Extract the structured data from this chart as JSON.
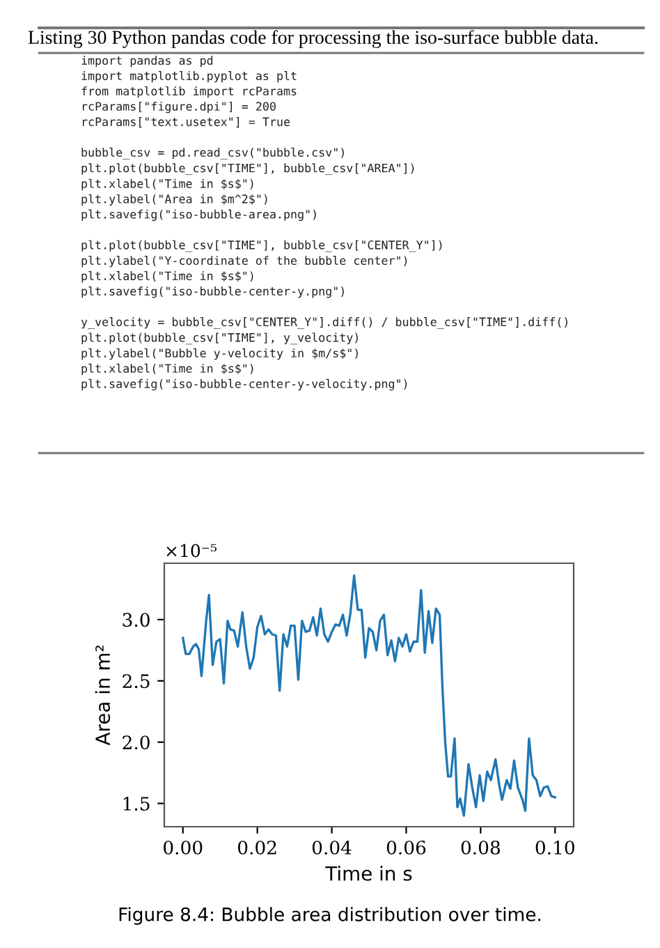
{
  "chart_data": {
    "type": "line",
    "xlabel": "Time in s",
    "ylabel": "Area in m²",
    "annotations": [
      "Listing 30 Python pandas code for processing the iso-surface bubble data.",
      "import pandas as pd\nimport matplotlib.pyplot as plt\nfrom matplotlib import rcParams\nrcParams[\"figure.dpi\"] = 200\nrcParams[\"text.usetex\"] = True\n\nbubble_csv = pd.read_csv(\"bubble.csv\")\nplt.plot(bubble_csv[\"TIME\"], bubble_csv[\"AREA\"])\nplt.xlabel(\"Time in $s$\")\nplt.ylabel(\"Area in $m^2$\")\nplt.savefig(\"iso-bubble-area.png\")\n\nplt.plot(bubble_csv[\"TIME\"], bubble_csv[\"CENTER_Y\"])\nplt.ylabel(\"Y-coordinate of the bubble center\")\nplt.xlabel(\"Time in $s$\")\nplt.savefig(\"iso-bubble-center-y.png\")\n\ny_velocity = bubble_csv[\"CENTER_Y\"].diff() / bubble_csv[\"TIME\"].diff()\nplt.plot(bubble_csv[\"TIME\"], y_velocity)\nplt.ylabel(\"Bubble y-velocity in $m/s$\")\nplt.xlabel(\"Time in $s$\")\nplt.savefig(\"iso-bubble-center-y-velocity.png\")",
      "×10⁻⁵",
      "Figure 8.4: Bubble area distribution over time."
    ],
    "x": [
      0,
      0.00075,
      0.00175,
      0.00275,
      0.0035,
      0.00425,
      0.005,
      0.00625,
      0.007,
      0.008,
      0.009,
      0.01,
      0.011,
      0.012,
      0.01275,
      0.01375,
      0.01475,
      0.016,
      0.017,
      0.018,
      0.019,
      0.02,
      0.021,
      0.022,
      0.023,
      0.024,
      0.025,
      0.026,
      0.027,
      0.028,
      0.029,
      0.03,
      0.031,
      0.032,
      0.033,
      0.034,
      0.035,
      0.036,
      0.037,
      0.038,
      0.039,
      0.04,
      0.041,
      0.042,
      0.043,
      0.044,
      0.045,
      0.046,
      0.047,
      0.048,
      0.049,
      0.05,
      0.051,
      0.052,
      0.053,
      0.054,
      0.055,
      0.056,
      0.057,
      0.058,
      0.059,
      0.06,
      0.061,
      0.062,
      0.063,
      0.064,
      0.065,
      0.066,
      0.067,
      0.068,
      0.069,
      0.06975,
      0.0705,
      0.07125,
      0.072,
      0.073,
      0.07375,
      0.0745,
      0.0755,
      0.07675,
      0.07775,
      0.07875,
      0.07975,
      0.08075,
      0.08175,
      0.08275,
      0.084,
      0.085,
      0.08575,
      0.087,
      0.088,
      0.089,
      0.09,
      0.09125,
      0.092,
      0.093,
      0.094,
      0.095,
      0.096,
      0.097,
      0.098,
      0.099,
      0.1
    ],
    "series": [
      {
        "color": "#1f77b4",
        "values": [
          2.85,
          2.72,
          2.72,
          2.78,
          2.8,
          2.76,
          2.54,
          2.99,
          3.2,
          2.63,
          2.82,
          2.84,
          2.48,
          2.99,
          2.92,
          2.91,
          2.78,
          3.06,
          2.78,
          2.6,
          2.69,
          2.94,
          3.03,
          2.88,
          2.92,
          2.88,
          2.87,
          2.42,
          2.88,
          2.78,
          2.95,
          2.95,
          2.51,
          2.99,
          2.9,
          2.91,
          3.02,
          2.87,
          3.09,
          2.88,
          2.82,
          2.9,
          2.96,
          2.95,
          3.04,
          2.87,
          3.05,
          3.36,
          3.08,
          3.08,
          2.69,
          2.93,
          2.9,
          2.75,
          2.99,
          3.04,
          2.71,
          2.83,
          2.66,
          2.85,
          2.78,
          2.88,
          2.74,
          2.82,
          2.82,
          3.24,
          2.73,
          3.07,
          2.81,
          3.09,
          3.04,
          2.44,
          1.99,
          1.72,
          1.72,
          2.03,
          1.47,
          1.54,
          1.4,
          1.82,
          1.63,
          1.47,
          1.73,
          1.52,
          1.76,
          1.69,
          1.86,
          1.65,
          1.53,
          1.69,
          1.62,
          1.85,
          1.63,
          1.53,
          1.44,
          2.03,
          1.73,
          1.69,
          1.56,
          1.63,
          1.64,
          1.56,
          1.55
        ]
      }
    ],
    "xlim": [
      -0.005,
      0.105
    ],
    "ylim": [
      1.31,
      3.46
    ],
    "xticks": [
      {
        "value": 0,
        "label": "0.00"
      },
      {
        "value": 0.02,
        "label": "0.02"
      },
      {
        "value": 0.04,
        "label": "0.04"
      },
      {
        "value": 0.06,
        "label": "0.06"
      },
      {
        "value": 0.08,
        "label": "0.08"
      },
      {
        "value": 0.1,
        "label": "0.10"
      }
    ],
    "yticks": [
      {
        "value": 1.5,
        "label": "1.5"
      },
      {
        "value": 2.0,
        "label": "2.0"
      },
      {
        "value": 2.5,
        "label": "2.5"
      },
      {
        "value": 3.0,
        "label": "3.0"
      }
    ],
    "grid": false,
    "marker": "none",
    "line_style": "solid"
  }
}
